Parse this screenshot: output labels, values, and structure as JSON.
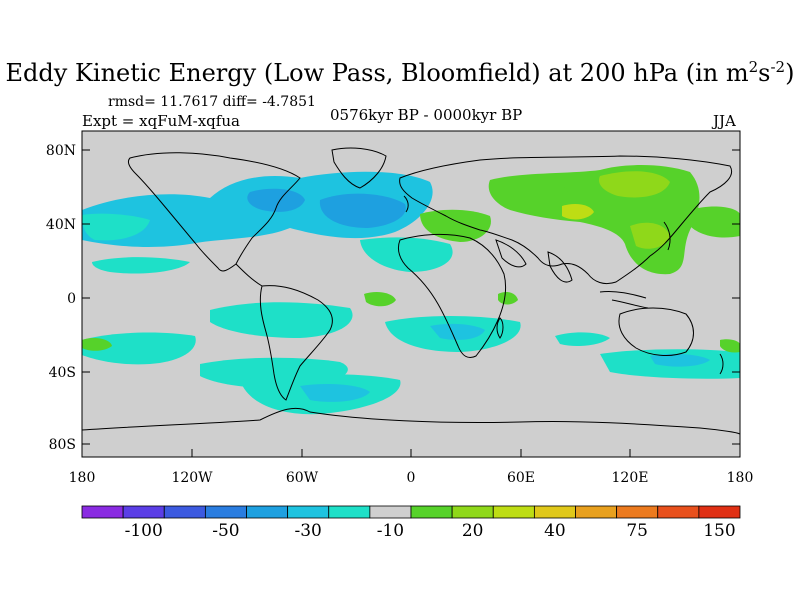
{
  "title": {
    "main": "Eddy Kinetic Energy (Low Pass, Bloomfield) at 200 hPa (in m",
    "sup1": "2",
    "mid": "s",
    "sup2": "-2",
    "end": ")"
  },
  "stats": "rmsd= 11.7617 diff= -4.7851",
  "experiment": "Expt = xqFuM-xqfua",
  "period": "0576kyr BP - 0000kyr BP",
  "season": "JJA",
  "axes": {
    "lat_labels": [
      "80N",
      "40N",
      "0",
      "40S",
      "80S"
    ],
    "lon_labels": [
      "180",
      "120W",
      "60W",
      "0",
      "60E",
      "120E",
      "180"
    ]
  },
  "colorbar": {
    "colors": [
      "#8a2be2",
      "#5b3ee6",
      "#3c5ae0",
      "#2a7de0",
      "#1ea0e0",
      "#1ec3e0",
      "#1ee0c8",
      "#cfcfcf",
      "#56d22a",
      "#8fd81a",
      "#bedd14",
      "#e0c81a",
      "#e8a01e",
      "#ec7a1e",
      "#e8501c",
      "#e03014"
    ],
    "tick_labels": [
      "-100",
      "-50",
      "-30",
      "-10",
      "20",
      "40",
      "75",
      "150"
    ]
  },
  "legend_colors": {
    "land_line": "#000000",
    "neutral": "#cfcfcf",
    "blue_mid": "#1ec3e0",
    "blue_deep": "#1ea0e0",
    "cyan": "#1ee0c8",
    "green": "#56d22a",
    "green_light": "#8fd81a",
    "yellow_green": "#bedd14"
  }
}
